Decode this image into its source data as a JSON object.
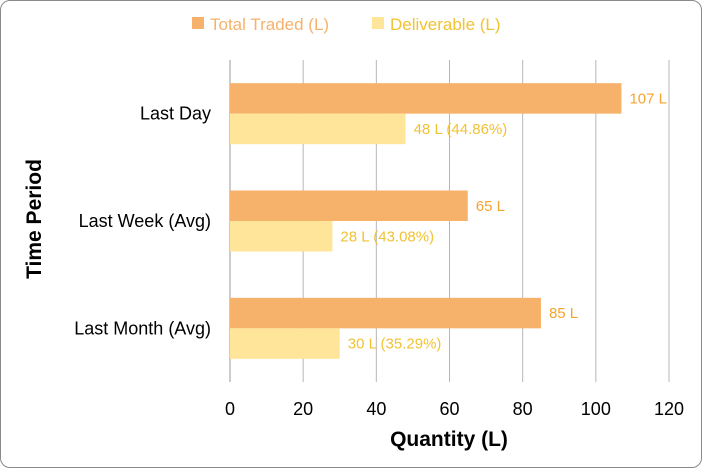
{
  "chart_data": {
    "type": "bar",
    "orientation": "horizontal",
    "title": "",
    "xlabel": "Quantity (L)",
    "ylabel": "Time Period",
    "xlim": [
      0,
      120
    ],
    "xticks": [
      0,
      20,
      40,
      60,
      80,
      100,
      120
    ],
    "grid": true,
    "legend_position": "top-center",
    "categories": [
      "Last Day",
      "Last Week (Avg)",
      "Last Month (Avg)"
    ],
    "series": [
      {
        "name": "Total Traded (L)",
        "color": "#F6B26B",
        "label_color": "#F5A42E",
        "values": [
          107,
          65,
          85
        ],
        "labels": [
          "107 L",
          "65 L",
          "85 L"
        ]
      },
      {
        "name": "Deliverable (L)",
        "color": "#FFE599",
        "label_color": "#F1C232",
        "values": [
          48,
          28,
          30
        ],
        "labels": [
          "48 L (44.86%)",
          "28 L (43.08%)",
          "30 L (35.29%)"
        ]
      }
    ]
  }
}
